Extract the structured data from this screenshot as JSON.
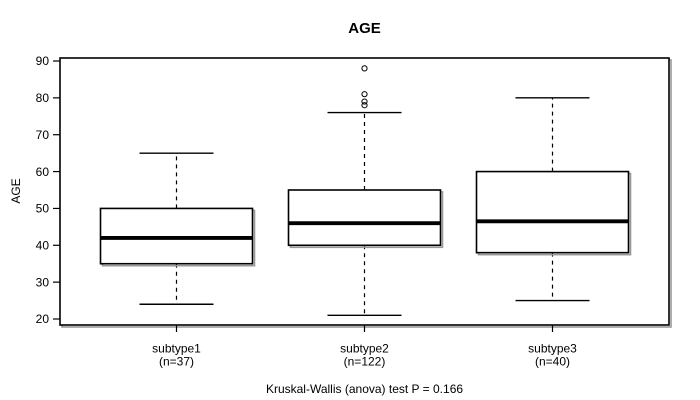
{
  "figure": {
    "title": "AGE",
    "y_axis_title": "AGE",
    "caption": "Kruskal-Wallis (anova) test P = 0.166"
  },
  "chart_data": {
    "type": "boxplot",
    "title": "AGE",
    "xlabel": "",
    "ylabel": "AGE",
    "caption": "Kruskal-Wallis (anova) test P = 0.166",
    "yticks": [
      20,
      30,
      40,
      50,
      60,
      70,
      80,
      90
    ],
    "ylim": [
      18.4,
      90.8
    ],
    "grid": false,
    "legend": false,
    "orientation": "vertical",
    "groups": [
      {
        "label": "subtype1",
        "n_label": "(n=37)",
        "n": 37,
        "whisker_low": 24,
        "q1": 35,
        "median": 42,
        "q3": 50,
        "whisker_high": 65,
        "outliers": []
      },
      {
        "label": "subtype2",
        "n_label": "(n=122)",
        "n": 122,
        "whisker_low": 21,
        "q1": 40,
        "median": 46,
        "q3": 55,
        "whisker_high": 76,
        "outliers": [
          78,
          79,
          81,
          88
        ]
      },
      {
        "label": "subtype3",
        "n_label": "(n=40)",
        "n": 40,
        "whisker_low": 25,
        "q1": 38,
        "median": 46.5,
        "q3": 60,
        "whisker_high": 80,
        "outliers": []
      }
    ],
    "colors": {
      "line": "#000000",
      "box_fill": "#ffffff",
      "background": "#ffffff",
      "shadow": "#999999"
    }
  }
}
